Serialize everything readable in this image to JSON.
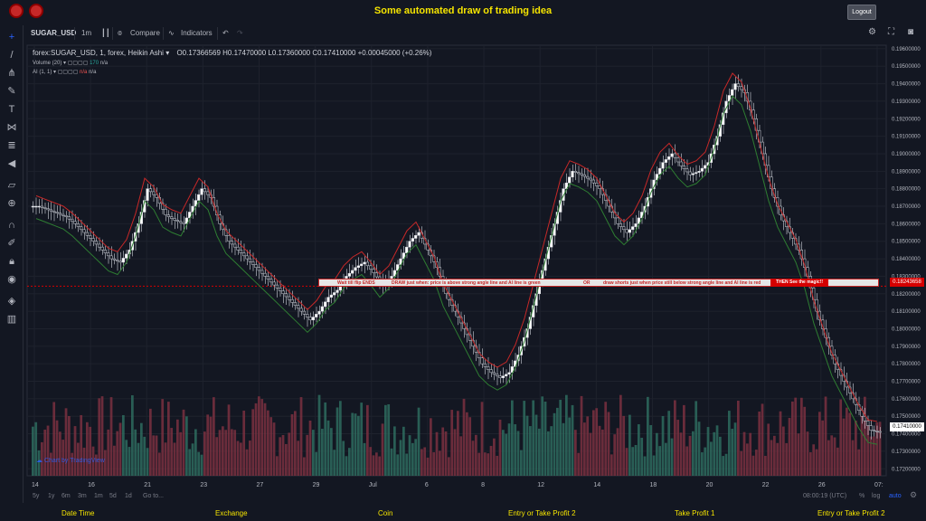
{
  "header": {
    "title": "Some automated draw of trading idea",
    "logout_label": "Logout"
  },
  "toolbar": {
    "symbol": "SUGAR_USD",
    "interval": "1m",
    "compare_label": "Compare",
    "indicators_label": "Indicators"
  },
  "legend": {
    "main": "forex:SUGAR_USD, 1, forex, Heikin Ashi",
    "ohlc": "O0.17366569  H0.17470000  L0.17360000  C0.17410000  +0.00045000 (+0.26%)",
    "volume_label": "Volume (20)",
    "volume_val": "170",
    "volume_na": "n/a",
    "ai_label": "AI (1, 1)",
    "ai_val": "n/a",
    "ai_na": "n/a"
  },
  "banner": {
    "part1": "Wait till flip ENDS",
    "part2": "DRAW just when:  price is above strong angle line and AI line is green",
    "part3": "OR",
    "part4": "draw shorts just when price still below strong angle line and AI line is red",
    "magic": "THEN See the magic!!"
  },
  "price_badges": {
    "level": "0.18243658",
    "last": "0.17410000"
  },
  "watermark": "Chart by TradingView",
  "bottom": {
    "ranges": [
      "5y",
      "1y",
      "6m",
      "3m",
      "1m",
      "5d",
      "1d"
    ],
    "goto": "Go to...",
    "time": "08:00:19 (UTC)",
    "pct": "%",
    "log": "log",
    "auto": "auto"
  },
  "footer": [
    "Date Time",
    "Exchange",
    "Coin",
    "Entry or Take Profit 2",
    "Take Profit 1",
    "Entry or Take Profit 2"
  ],
  "colors": {
    "bg": "#131722",
    "up_line": "#2e7d32",
    "down_line": "#c62828",
    "vol_up": "#26a69a",
    "vol_down": "#ef5350",
    "accent": "#f5e400"
  },
  "chart_data": {
    "type": "candlestick",
    "y_ticks": [
      "0.19600000",
      "0.19500000",
      "0.19400000",
      "0.19300000",
      "0.19200000",
      "0.19100000",
      "0.19000000",
      "0.18900000",
      "0.18800000",
      "0.18700000",
      "0.18600000",
      "0.18500000",
      "0.18400000",
      "0.18300000",
      "0.18200000",
      "0.18100000",
      "0.18000000",
      "0.17900000",
      "0.17800000",
      "0.17700000",
      "0.17600000",
      "0.17500000",
      "0.17400000",
      "0.17300000",
      "0.17200000"
    ],
    "x_ticks": [
      "14",
      "16",
      "21",
      "23",
      "27",
      "29",
      "Jul",
      "6",
      "8",
      "12",
      "14",
      "18",
      "20",
      "22",
      "26",
      "07:"
    ],
    "ylim": [
      0.1716,
      0.1962
    ],
    "close_series": [
      0.187,
      0.1868,
      0.1866,
      0.1864,
      0.186,
      0.1855,
      0.185,
      0.1845,
      0.184,
      0.1838,
      0.1845,
      0.186,
      0.188,
      0.1875,
      0.1865,
      0.1862,
      0.186,
      0.187,
      0.188,
      0.1875,
      0.186,
      0.185,
      0.1845,
      0.184,
      0.1835,
      0.183,
      0.1825,
      0.182,
      0.1815,
      0.181,
      0.1805,
      0.181,
      0.1818,
      0.1822,
      0.183,
      0.1835,
      0.1838,
      0.1832,
      0.1825,
      0.183,
      0.184,
      0.185,
      0.1855,
      0.1845,
      0.1835,
      0.182,
      0.181,
      0.18,
      0.179,
      0.178,
      0.1775,
      0.1772,
      0.1775,
      0.1785,
      0.18,
      0.182,
      0.184,
      0.186,
      0.188,
      0.189,
      0.1888,
      0.1885,
      0.188,
      0.187,
      0.186,
      0.1855,
      0.186,
      0.187,
      0.1885,
      0.1895,
      0.19,
      0.1893,
      0.1888,
      0.189,
      0.1895,
      0.191,
      0.193,
      0.194,
      0.1935,
      0.192,
      0.19,
      0.188,
      0.1865,
      0.1855,
      0.1845,
      0.183,
      0.181,
      0.1795,
      0.178,
      0.177,
      0.176,
      0.175,
      0.1742,
      0.1741
    ]
  }
}
